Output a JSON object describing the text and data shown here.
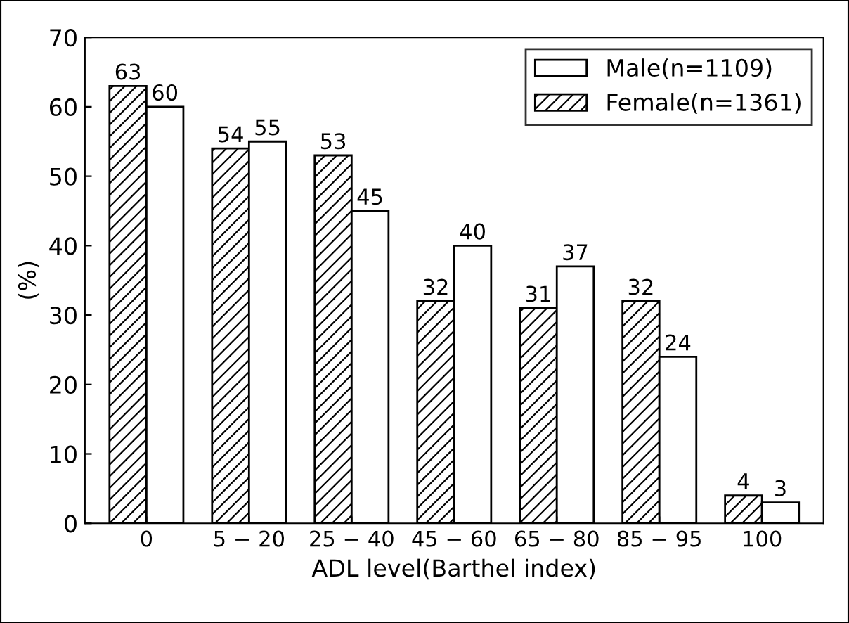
{
  "chart_data": {
    "type": "bar",
    "xlabel": "ADL level(Barthel index)",
    "ylabel": "(%)",
    "categories": [
      "0",
      "5 − 20",
      "25 − 40",
      "45 − 60",
      "65 − 80",
      "85 − 95",
      "100"
    ],
    "series": [
      {
        "name": "Female(n=1361)",
        "color": "#000000",
        "values": [
          63,
          54,
          53,
          32,
          31,
          32,
          4
        ]
      },
      {
        "name": "Male(n=1109)",
        "color": "#ffffff",
        "values": [
          60,
          55,
          45,
          40,
          37,
          24,
          3
        ]
      }
    ],
    "ylim": [
      0,
      70
    ],
    "yticks": [
      0,
      10,
      20,
      30,
      40,
      50,
      60,
      70
    ],
    "grid": false,
    "legend": "top right",
    "data_labels": true
  }
}
